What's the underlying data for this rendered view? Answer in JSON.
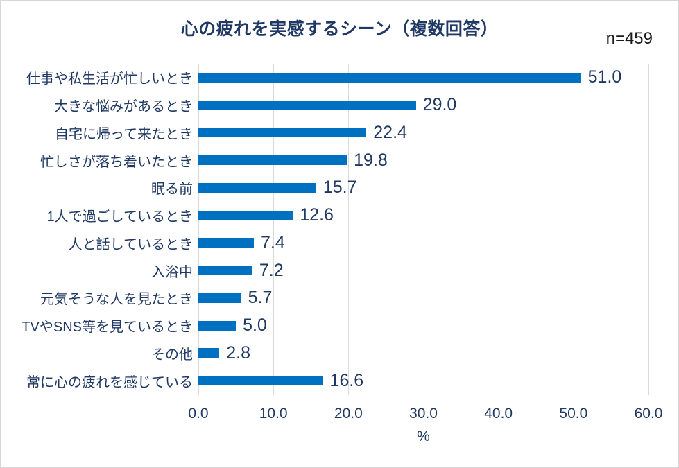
{
  "header": {
    "title": "心の疲れを実感するシーン（複数回答）",
    "sample_size": "n=459"
  },
  "chart_data": {
    "type": "bar",
    "orientation": "horizontal",
    "title": "心の疲れを実感するシーン（複数回答）",
    "sample_size": "n=459",
    "categories": [
      "仕事や私生活が忙しいとき",
      "大きな悩みがあるとき",
      "自宅に帰って来たとき",
      "忙しさが落ち着いたとき",
      "眠る前",
      "1人で過ごしているとき",
      "人と話しているとき",
      "入浴中",
      "元気そうな人を見たとき",
      "TVやSNS等を見ているとき",
      "その他",
      "常に心の疲れを感じている"
    ],
    "values": [
      51.0,
      29.0,
      22.4,
      19.8,
      15.7,
      12.6,
      7.4,
      7.2,
      5.7,
      5.0,
      2.8,
      16.6
    ],
    "value_labels": [
      "51.0",
      "29.0",
      "22.4",
      "19.8",
      "15.7",
      "12.6",
      "7.4",
      "7.2",
      "5.7",
      "5.0",
      "2.8",
      "16.6"
    ],
    "xlabel": "%",
    "xlim": [
      0,
      60
    ],
    "xticks": [
      0,
      10,
      20,
      30,
      40,
      50,
      60
    ],
    "xtick_labels": [
      "0.0",
      "10.0",
      "20.0",
      "30.0",
      "40.0",
      "50.0",
      "60.0"
    ],
    "grid": true,
    "legend": "none",
    "colors": {
      "bar": "#0070c0",
      "gridline": "#d9d9d9",
      "text": "#1f3864",
      "sample_size_text": "#1a1a1a",
      "frame_border": "#d6d6d6",
      "background": "#ffffff"
    }
  }
}
